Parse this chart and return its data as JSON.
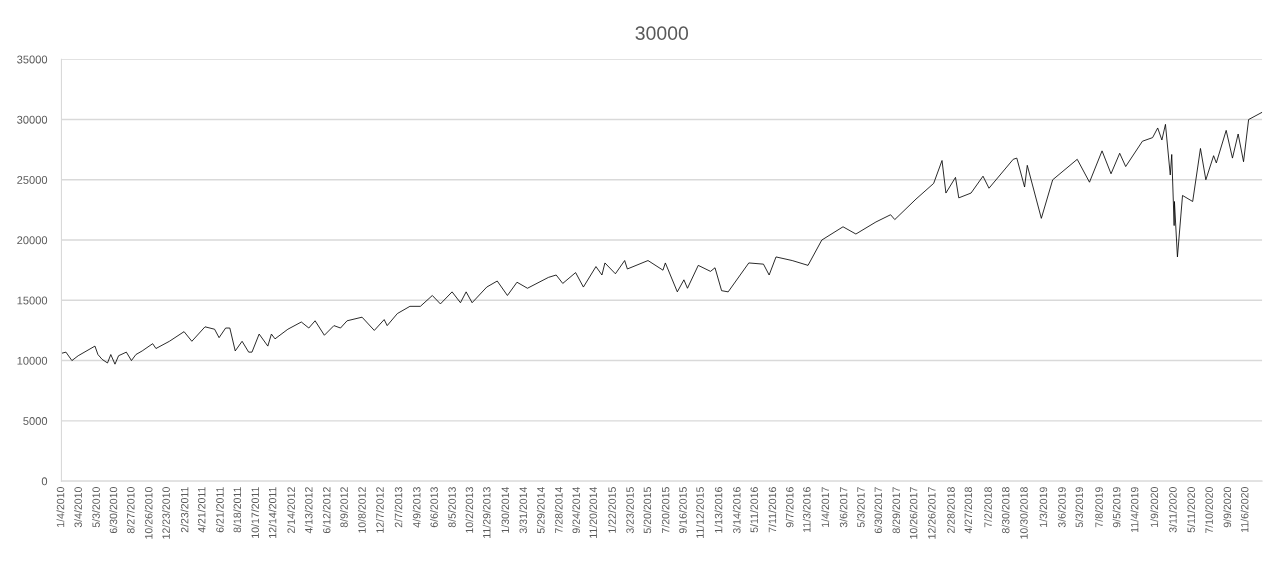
{
  "chart_data": {
    "type": "line",
    "title": "30000",
    "x": [
      "2010-01-04",
      "2010-01-19",
      "2010-02-08",
      "2010-03-01",
      "2010-04-26",
      "2010-05-06",
      "2010-05-20",
      "2010-06-07",
      "2010-06-18",
      "2010-07-02",
      "2010-07-14",
      "2010-08-09",
      "2010-08-26",
      "2010-09-10",
      "2010-10-01",
      "2010-11-05",
      "2010-11-16",
      "2010-12-31",
      "2011-02-18",
      "2011-03-16",
      "2011-04-29",
      "2011-05-31",
      "2011-06-15",
      "2011-07-07",
      "2011-07-21",
      "2011-08-08",
      "2011-08-31",
      "2011-09-22",
      "2011-10-03",
      "2011-10-27",
      "2011-11-25",
      "2011-12-07",
      "2011-12-19",
      "2012-01-31",
      "2012-03-16",
      "2012-04-10",
      "2012-05-01",
      "2012-06-01",
      "2012-07-03",
      "2012-07-25",
      "2012-08-16",
      "2012-10-05",
      "2012-11-15",
      "2012-12-18",
      "2012-12-28",
      "2013-01-31",
      "2013-03-14",
      "2013-04-18",
      "2013-05-28",
      "2013-06-24",
      "2013-08-02",
      "2013-08-30",
      "2013-09-18",
      "2013-10-08",
      "2013-11-26",
      "2013-12-31",
      "2014-02-03",
      "2014-03-07",
      "2014-04-11",
      "2014-06-20",
      "2014-07-16",
      "2014-08-07",
      "2014-09-19",
      "2014-10-15",
      "2014-11-26",
      "2014-12-16",
      "2014-12-26",
      "2015-01-30",
      "2015-03-02",
      "2015-03-11",
      "2015-05-19",
      "2015-07-08",
      "2015-07-16",
      "2015-08-25",
      "2015-09-16",
      "2015-09-28",
      "2015-11-03",
      "2015-12-14",
      "2015-12-29",
      "2016-01-20",
      "2016-02-11",
      "2016-04-20",
      "2016-06-08",
      "2016-06-27",
      "2016-07-20",
      "2016-09-12",
      "2016-11-04",
      "2016-12-20",
      "2017-03-01",
      "2017-04-13",
      "2017-06-19",
      "2017-08-07",
      "2017-08-21",
      "2017-10-31",
      "2017-12-29",
      "2018-01-26",
      "2018-02-08",
      "2018-03-12",
      "2018-03-23",
      "2018-05-03",
      "2018-06-12",
      "2018-07-02",
      "2018-09-21",
      "2018-10-03",
      "2018-10-29",
      "2018-11-07",
      "2018-12-24",
      "2019-01-31",
      "2019-04-23",
      "2019-06-03",
      "2019-07-15",
      "2019-08-14",
      "2019-09-12",
      "2019-10-02",
      "2019-11-27",
      "2019-12-31",
      "2020-01-17",
      "2020-01-31",
      "2020-02-12",
      "2020-02-28",
      "2020-03-04",
      "2020-03-12",
      "2020-03-13",
      "2020-03-23",
      "2020-04-09",
      "2020-05-13",
      "2020-06-08",
      "2020-06-26",
      "2020-07-22",
      "2020-07-31",
      "2020-09-02",
      "2020-09-23",
      "2020-10-12",
      "2020-10-30",
      "2020-11-16",
      "2020-12-31"
    ],
    "series": [
      {
        "color": "#000000",
        "values": [
          10600,
          10700,
          10000,
          10400,
          11200,
          10500,
          10100,
          9800,
          10500,
          9700,
          10400,
          10700,
          10000,
          10500,
          10800,
          11400,
          11000,
          11600,
          12400,
          11600,
          12800,
          12600,
          11900,
          12700,
          12700,
          10800,
          11600,
          10700,
          10700,
          12200,
          11200,
          12200,
          11800,
          12600,
          13200,
          12700,
          13300,
          12100,
          12900,
          12700,
          13300,
          13600,
          12500,
          13400,
          12900,
          13900,
          14500,
          14500,
          15400,
          14700,
          15700,
          14800,
          15700,
          14800,
          16100,
          16600,
          15400,
          16500,
          16000,
          16900,
          17100,
          16400,
          17300,
          16100,
          17800,
          17100,
          18100,
          17200,
          18300,
          17600,
          18300,
          17500,
          18100,
          15700,
          16700,
          16000,
          17900,
          17400,
          17700,
          15800,
          15700,
          18100,
          18000,
          17100,
          18600,
          18300,
          17900,
          20000,
          21100,
          20500,
          21500,
          22100,
          21700,
          23400,
          24700,
          26600,
          23900,
          25200,
          23500,
          23900,
          25300,
          24300,
          26700,
          26800,
          24400,
          26200,
          21800,
          25000,
          26700,
          24800,
          27400,
          25500,
          27200,
          26100,
          28200,
          28500,
          29300,
          28300,
          29600,
          25400,
          27100,
          21200,
          23200,
          18600,
          23700,
          23200,
          27600,
          25000,
          27000,
          26400,
          29100,
          26800,
          28800,
          26500,
          30000,
          30600
        ]
      }
    ],
    "xlim": [
      "2010-01-04",
      "2020-12-31"
    ],
    "xticks": [
      {
        "value": "2010-01-04",
        "label": "1/4/2010"
      },
      {
        "value": "2010-03-04",
        "label": "3/4/2010"
      },
      {
        "value": "2010-05-03",
        "label": "5/3/2010"
      },
      {
        "value": "2010-06-30",
        "label": "6/30/2010"
      },
      {
        "value": "2010-08-27",
        "label": "8/27/2010"
      },
      {
        "value": "2010-10-26",
        "label": "10/26/2010"
      },
      {
        "value": "2010-12-23",
        "label": "12/23/2010"
      },
      {
        "value": "2011-02-23",
        "label": "2/23/2011"
      },
      {
        "value": "2011-04-21",
        "label": "4/21/2011"
      },
      {
        "value": "2011-06-21",
        "label": "6/21/2011"
      },
      {
        "value": "2011-08-18",
        "label": "8/18/2011"
      },
      {
        "value": "2011-10-17",
        "label": "10/17/2011"
      },
      {
        "value": "2011-12-14",
        "label": "12/14/2011"
      },
      {
        "value": "2012-02-14",
        "label": "2/14/2012"
      },
      {
        "value": "2012-04-13",
        "label": "4/13/2012"
      },
      {
        "value": "2012-06-12",
        "label": "6/12/2012"
      },
      {
        "value": "2012-08-09",
        "label": "8/9/2012"
      },
      {
        "value": "2012-10-08",
        "label": "10/8/2012"
      },
      {
        "value": "2012-12-07",
        "label": "12/7/2012"
      },
      {
        "value": "2013-02-07",
        "label": "2/7/2013"
      },
      {
        "value": "2013-04-09",
        "label": "4/9/2013"
      },
      {
        "value": "2013-06-06",
        "label": "6/6/2013"
      },
      {
        "value": "2013-08-05",
        "label": "8/5/2013"
      },
      {
        "value": "2013-10-02",
        "label": "10/2/2013"
      },
      {
        "value": "2013-11-29",
        "label": "11/29/2013"
      },
      {
        "value": "2014-01-30",
        "label": "1/30/2014"
      },
      {
        "value": "2014-03-31",
        "label": "3/31/2014"
      },
      {
        "value": "2014-05-29",
        "label": "5/29/2014"
      },
      {
        "value": "2014-07-28",
        "label": "7/28/2014"
      },
      {
        "value": "2014-09-24",
        "label": "9/24/2014"
      },
      {
        "value": "2014-11-20",
        "label": "11/20/2014"
      },
      {
        "value": "2015-01-22",
        "label": "1/22/2015"
      },
      {
        "value": "2015-03-23",
        "label": "3/23/2015"
      },
      {
        "value": "2015-05-20",
        "label": "5/20/2015"
      },
      {
        "value": "2015-07-20",
        "label": "7/20/2015"
      },
      {
        "value": "2015-09-16",
        "label": "9/16/2015"
      },
      {
        "value": "2015-11-12",
        "label": "11/12/2015"
      },
      {
        "value": "2016-01-13",
        "label": "1/13/2016"
      },
      {
        "value": "2016-03-14",
        "label": "3/14/2016"
      },
      {
        "value": "2016-05-11",
        "label": "5/11/2016"
      },
      {
        "value": "2016-07-11",
        "label": "7/11/2016"
      },
      {
        "value": "2016-09-07",
        "label": "9/7/2016"
      },
      {
        "value": "2016-11-03",
        "label": "11/3/2016"
      },
      {
        "value": "2017-01-04",
        "label": "1/4/2017"
      },
      {
        "value": "2017-03-06",
        "label": "3/6/2017"
      },
      {
        "value": "2017-05-03",
        "label": "5/3/2017"
      },
      {
        "value": "2017-06-30",
        "label": "6/30/2017"
      },
      {
        "value": "2017-08-29",
        "label": "8/29/2017"
      },
      {
        "value": "2017-10-26",
        "label": "10/26/2017"
      },
      {
        "value": "2017-12-26",
        "label": "12/26/2017"
      },
      {
        "value": "2018-02-28",
        "label": "2/28/2018"
      },
      {
        "value": "2018-04-27",
        "label": "4/27/2018"
      },
      {
        "value": "2018-07-02",
        "label": "7/2/2018"
      },
      {
        "value": "2018-08-30",
        "label": "8/30/2018"
      },
      {
        "value": "2018-10-30",
        "label": "10/30/2018"
      },
      {
        "value": "2019-01-03",
        "label": "1/3/2019"
      },
      {
        "value": "2019-03-06",
        "label": "3/6/2019"
      },
      {
        "value": "2019-05-03",
        "label": "5/3/2019"
      },
      {
        "value": "2019-07-08",
        "label": "7/8/2019"
      },
      {
        "value": "2019-09-05",
        "label": "9/5/2019"
      },
      {
        "value": "2019-11-04",
        "label": "11/4/2019"
      },
      {
        "value": "2020-01-09",
        "label": "1/9/2020"
      },
      {
        "value": "2020-03-11",
        "label": "3/11/2020"
      },
      {
        "value": "2020-05-11",
        "label": "5/11/2020"
      },
      {
        "value": "2020-07-10",
        "label": "7/10/2020"
      },
      {
        "value": "2020-09-09",
        "label": "9/9/2020"
      },
      {
        "value": "2020-11-06",
        "label": "11/6/2020"
      }
    ],
    "ylim": [
      0,
      35000
    ],
    "yticks": [
      0,
      5000,
      10000,
      15000,
      20000,
      25000,
      30000,
      35000
    ],
    "grid": "y",
    "line_style": "solid"
  }
}
